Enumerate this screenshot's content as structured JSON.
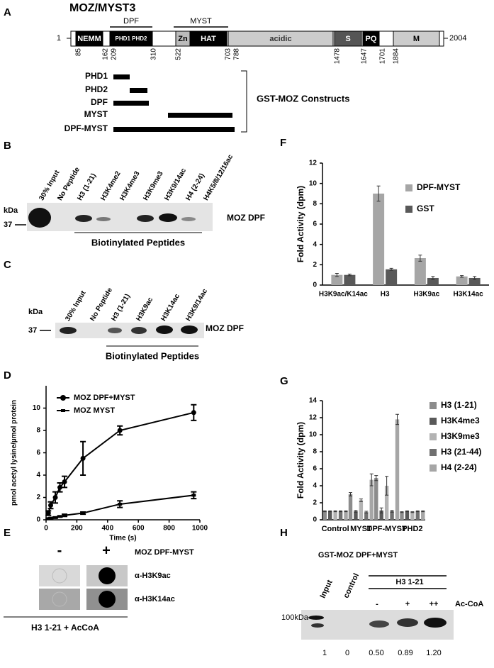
{
  "panels": {
    "A": {
      "label": "A",
      "title": "MOZ/MYST3",
      "start": "1",
      "end": "2004",
      "domains": [
        "NEMM",
        "PHD1 PHD2",
        "Zn",
        "HAT",
        "acidic",
        "S",
        "PQ",
        "M"
      ],
      "brackets": [
        "DPF",
        "MYST"
      ],
      "positions": [
        "85",
        "162",
        "209",
        "310",
        "522",
        "703",
        "788",
        "1478",
        "1647",
        "1701",
        "1884"
      ],
      "constructs": [
        "PHD1",
        "PHD2",
        "DPF",
        "MYST",
        "DPF-MYST"
      ],
      "constructs_title": "GST-MOZ Constructs"
    },
    "B": {
      "label": "B",
      "lanes": [
        "30% Input",
        "No Peptide",
        "H3 (1-21)",
        "H3K4me2",
        "H3K4me3",
        "H3K9me3",
        "H3K9/14ac",
        "H4 (2-24)",
        "H4K5/8/12/16ac"
      ],
      "kda": "kDa",
      "marker": "37",
      "band_label": "MOZ DPF",
      "group_label": "Biotinylated Peptides"
    },
    "C": {
      "label": "C",
      "lanes": [
        "30% Input",
        "No Peptide",
        "H3 (1-21)",
        "H3K9ac",
        "H3K14ac",
        "H3K9/14ac"
      ],
      "kda": "kDa",
      "marker": "37",
      "band_label": "MOZ DPF",
      "group_label": "Biotinylated Peptides"
    },
    "D": {
      "label": "D"
    },
    "E": {
      "label": "E",
      "minus": "-",
      "plus": "+",
      "protein": "MOZ DPF-MYST",
      "antibodies": [
        "α-H3K9ac",
        "α-H3K14ac"
      ],
      "footer": "H3 1-21 + AcCoA"
    },
    "F": {
      "label": "F"
    },
    "G": {
      "label": "G"
    },
    "H": {
      "label": "H",
      "title": "GST-MOZ DPF+MYST",
      "lanes": [
        "Input",
        "control"
      ],
      "peptide": "H3 1-21",
      "acoa_levels": [
        "-",
        "+",
        "++"
      ],
      "acoa_label": "Ac-CoA",
      "marker": "100kDa",
      "quantification": [
        "1",
        "0",
        "0.50",
        "0.89",
        "1.20"
      ]
    }
  },
  "chart_data": [
    {
      "type": "line",
      "xlabel": "Time (s)",
      "ylabel": "pmol acetyl lysine/µmol protein",
      "xlim": [
        0,
        1000
      ],
      "xticks": [
        0,
        200,
        400,
        600,
        800,
        1000
      ],
      "ylim": [
        0,
        12
      ],
      "yticks": [
        0,
        2,
        4,
        6,
        8,
        10
      ],
      "legend": "upper left",
      "series": [
        {
          "name": "MOZ DPF+MYST",
          "marker": "circle",
          "color": "#000000",
          "x": [
            15,
            30,
            60,
            90,
            120,
            240,
            480,
            960
          ],
          "values": [
            0.6,
            1.3,
            2.0,
            2.9,
            3.4,
            5.5,
            8.0,
            9.6
          ],
          "errors": [
            0.2,
            0.3,
            0.5,
            0.4,
            0.5,
            1.5,
            0.4,
            0.7
          ]
        },
        {
          "name": "MOZ MYST",
          "marker": "square",
          "color": "#000000",
          "x": [
            15,
            30,
            60,
            90,
            120,
            240,
            480,
            960
          ],
          "values": [
            0.1,
            0.15,
            0.2,
            0.3,
            0.4,
            0.6,
            1.4,
            2.2
          ],
          "errors": [
            0.05,
            0.05,
            0.05,
            0.05,
            0.1,
            0.1,
            0.3,
            0.3
          ]
        }
      ]
    },
    {
      "type": "bar",
      "ylabel": "Fold Activity (dpm)",
      "categories": [
        "H3K9ac/K14ac",
        "H3",
        "H3K9ac",
        "H3K14ac"
      ],
      "ylim": [
        0,
        12
      ],
      "yticks": [
        0,
        2,
        4,
        6,
        8,
        10,
        12
      ],
      "legend": "upper right",
      "series": [
        {
          "name": "DPF-MYST",
          "color": "#a6a6a6",
          "values": [
            1.0,
            9.0,
            2.65,
            0.85
          ],
          "errors": [
            0.15,
            0.75,
            0.3,
            0.08
          ]
        },
        {
          "name": "GST",
          "color": "#595959",
          "values": [
            1.0,
            1.55,
            0.7,
            0.7
          ],
          "errors": [
            0.08,
            0.1,
            0.15,
            0.15
          ]
        }
      ]
    },
    {
      "type": "bar",
      "ylabel": "Fold Activity (dpm)",
      "categories": [
        "Control",
        "MYST",
        "DPF-MYST",
        "PHD2"
      ],
      "ylim": [
        0,
        14
      ],
      "yticks": [
        0,
        2,
        4,
        6,
        8,
        10,
        12,
        14
      ],
      "legend": "right",
      "series": [
        {
          "name": "H3 (1-21)",
          "color": "#8c8c8c",
          "values": [
            1.0,
            3.0,
            4.9,
            0.9
          ],
          "errors": [
            0.05,
            0.2,
            0.3,
            0.05
          ]
        },
        {
          "name": "H3K4me3",
          "color": "#595959",
          "values": [
            1.0,
            1.0,
            1.1,
            1.0
          ],
          "errors": [
            0.05,
            0.1,
            0.3,
            0.05
          ]
        },
        {
          "name": "H3K9me3",
          "color": "#b3b3b3",
          "values": [
            1.0,
            2.3,
            4.0,
            0.9
          ],
          "errors": [
            0.05,
            0.15,
            1.1,
            0.05
          ]
        },
        {
          "name": "H3 (21-44)",
          "color": "#707070",
          "values": [
            1.0,
            0.9,
            1.0,
            1.0
          ],
          "errors": [
            0.05,
            0.1,
            0.1,
            0.05
          ]
        },
        {
          "name": "H4 (2-24)",
          "color": "#a6a6a6",
          "values": [
            1.0,
            4.7,
            11.8,
            1.0
          ],
          "errors": [
            0.05,
            0.7,
            0.6,
            0.05
          ]
        }
      ]
    }
  ]
}
